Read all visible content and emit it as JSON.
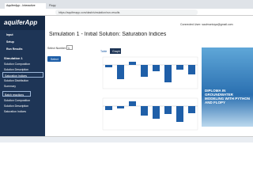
{
  "browser": {
    "tabs": [
      "AquiferApp - Interactive",
      "Flopy"
    ],
    "url": "https://aquiferapp.com/dash/simulation/run-results"
  },
  "header": {
    "user": "Connected User: saulmontoya@gmail.com"
  },
  "sidebar": {
    "logo": "aquiferApp",
    "nav": [
      "Input",
      "Setup",
      "Run Results"
    ],
    "simulation": "Simulation 1",
    "items": [
      "Solution Composition",
      "Solution Description",
      "Saturation Indices",
      "Solution Distribution",
      "Summary"
    ],
    "group": "Batch reactions",
    "group_items": [
      "Solution Composition",
      "Solution Description",
      "Saturation Indices"
    ]
  },
  "main": {
    "title": "Simulation 1 - Initial Solution: Saturation Indices",
    "select_label": "Select Number:",
    "select_value": "1",
    "button": "Select",
    "tabs": [
      "Table",
      "Graph"
    ]
  },
  "charts": [
    {
      "values": [
        -0.3,
        -1.8,
        0.4,
        -1.5,
        -0.8,
        -2.2,
        -0.6,
        -1.2
      ],
      "ylim": [
        -3,
        1
      ],
      "color": "#1f5fa8"
    },
    {
      "values": [
        -0.5,
        -0.3,
        0.6,
        -1.2,
        -1.6,
        -1.0,
        -2.0,
        -0.9
      ],
      "ylim": [
        -3,
        1
      ],
      "color": "#1f5fa8"
    }
  ],
  "ad": {
    "text": "DIPLOMA IN GROUNDWATER MODELING WITH PYTHON AND FLOPY"
  }
}
